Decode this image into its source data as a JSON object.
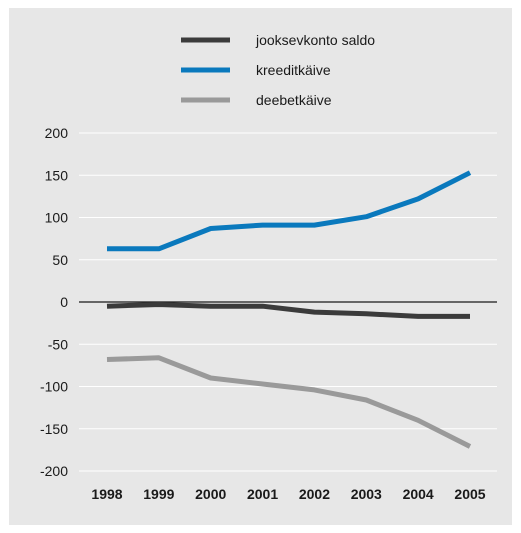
{
  "chart_data": {
    "type": "line",
    "title": "",
    "xlabel": "",
    "ylabel": "",
    "categories": [
      "1998",
      "1999",
      "2000",
      "2001",
      "2002",
      "2003",
      "2004",
      "2005"
    ],
    "ylim": [
      -200,
      200
    ],
    "yticks": [
      200,
      150,
      100,
      50,
      0,
      -50,
      -100,
      -150,
      -200
    ],
    "grid": true,
    "legend_position": "top-center",
    "series": [
      {
        "name": "jooksevkonto saldo",
        "color": "#3b3b3b",
        "values": [
          -5,
          -3,
          -5,
          -5,
          -12,
          -14,
          -17,
          -17
        ]
      },
      {
        "name": "kreeditkäive",
        "color": "#0a79bd",
        "values": [
          63,
          63,
          87,
          91,
          91,
          101,
          122,
          153
        ]
      },
      {
        "name": "deebetkäive",
        "color": "#9a9a9a",
        "values": [
          -68,
          -66,
          -90,
          -97,
          -104,
          -116,
          -140,
          -171
        ]
      }
    ]
  }
}
